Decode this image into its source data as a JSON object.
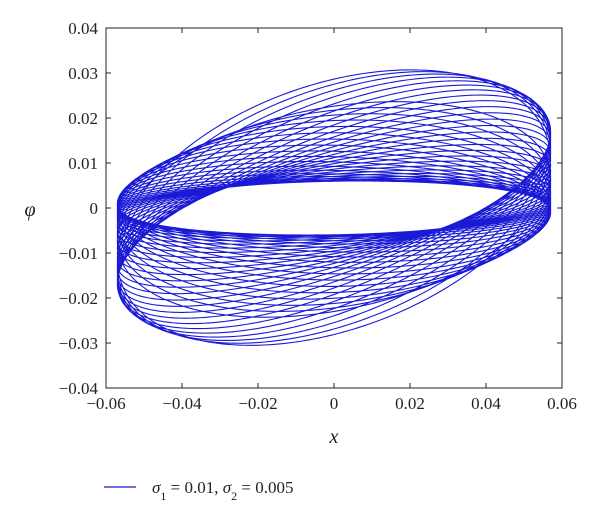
{
  "chart_data": {
    "type": "line",
    "title": "",
    "xlabel": "x",
    "ylabel": "φ",
    "xlim": [
      -0.06,
      0.06
    ],
    "ylim": [
      -0.04,
      0.04
    ],
    "xticks": [
      -0.06,
      -0.04,
      -0.02,
      0,
      0.02,
      0.04,
      0.06
    ],
    "yticks": [
      -0.04,
      -0.03,
      -0.02,
      -0.01,
      0,
      0.01,
      0.02,
      0.03,
      0.04
    ],
    "xtick_labels": [
      "−0.06",
      "−0.04",
      "−0.02",
      "0",
      "0.02",
      "0.04",
      "0.06"
    ],
    "ytick_labels": [
      "−0.04",
      "−0.03",
      "−0.02",
      "−0.01",
      "0",
      "0.01",
      "0.02",
      "0.03",
      "0.04"
    ],
    "grid": false,
    "legend_position": "bottom-left",
    "series": [
      {
        "name": "σ1 = 0.01, σ2 = 0.005",
        "color": "#1a1ad6",
        "description_of_shape": "quasi-periodic trajectory in (x, φ) plane",
        "params": {
          "x_amplitude": 0.057,
          "phi_amplitude_max": 0.031,
          "phi_amplitude_min": 0.006,
          "phi_modulation_depth": 0.45,
          "x_turning_points": [
            -0.057,
            0.057
          ]
        }
      }
    ]
  },
  "legend": {
    "prefix_symbol_1": "σ",
    "sub_1": "1",
    "value_1": " = 0.01, ",
    "prefix_symbol_2": "σ",
    "sub_2": "2",
    "value_2": " = 0.005"
  }
}
